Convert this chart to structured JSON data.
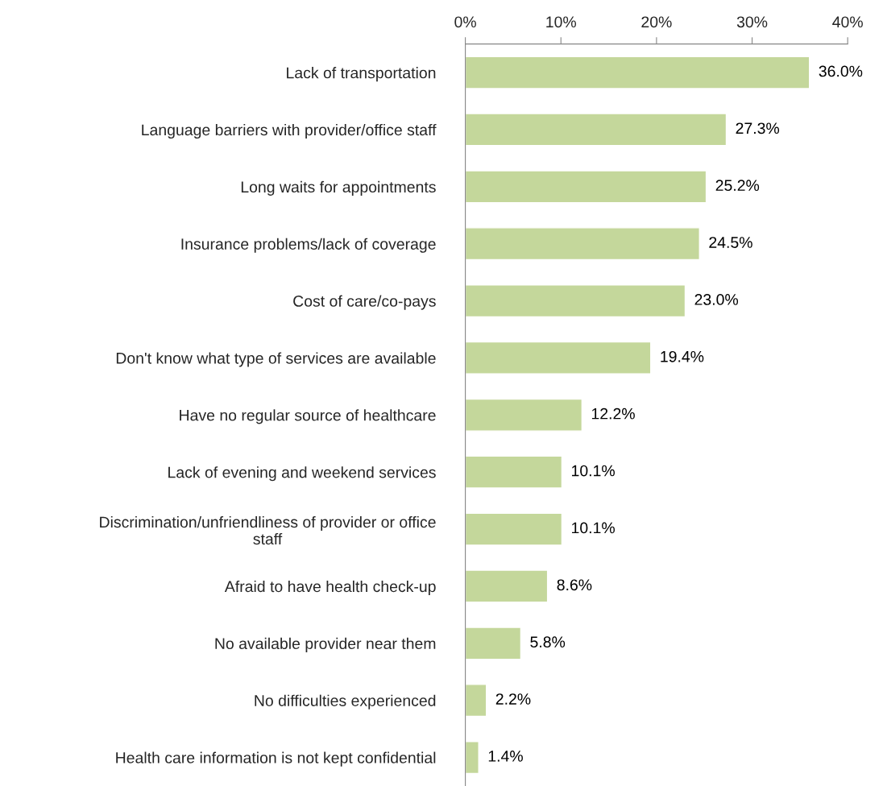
{
  "chart_data": {
    "type": "bar",
    "orientation": "horizontal",
    "categories": [
      "Lack of transportation",
      "Language barriers with provider/office staff",
      "Long waits for appointments",
      "Insurance problems/lack of coverage",
      "Cost of care/co-pays",
      "Don't know what type of services are available",
      "Have no regular source of healthcare",
      "Lack of evening and weekend services",
      "Discrimination/unfriendliness of provider or office\nstaff",
      "Afraid to have health check-up",
      "No available provider near them",
      "No difficulties experienced",
      "Health care information is not kept confidential"
    ],
    "values": [
      36.0,
      27.3,
      25.2,
      24.5,
      23.0,
      19.4,
      12.2,
      10.1,
      10.1,
      8.6,
      5.8,
      2.2,
      1.4
    ],
    "value_labels": [
      "36.0%",
      "27.3%",
      "25.2%",
      "24.5%",
      "23.0%",
      "19.4%",
      "12.2%",
      "10.1%",
      "10.1%",
      "8.6%",
      "5.8%",
      "2.2%",
      "1.4%"
    ],
    "color": "#c4d79b",
    "xlim": [
      0,
      40
    ],
    "xticks": [
      {
        "value": 0,
        "label": "0%"
      },
      {
        "value": 10,
        "label": "10%"
      },
      {
        "value": 20,
        "label": "20%"
      },
      {
        "value": 30,
        "label": "30%"
      },
      {
        "value": 40,
        "label": "40%"
      }
    ],
    "grid": false,
    "legend": false
  }
}
